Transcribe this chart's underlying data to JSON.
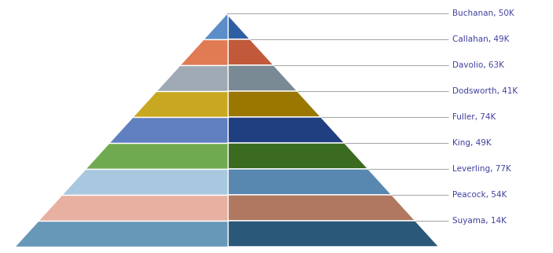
{
  "layers": [
    {
      "name": "Buchanan",
      "value": 50,
      "left_color": "#5B8DC8",
      "right_color": "#2E5FA3"
    },
    {
      "name": "Callahan",
      "value": 49,
      "left_color": "#E07B54",
      "right_color": "#C05A3A"
    },
    {
      "name": "Davolio",
      "value": 63,
      "left_color": "#A0AAB4",
      "right_color": "#7A8A94"
    },
    {
      "name": "Dodsworth",
      "value": 41,
      "left_color": "#C8A820",
      "right_color": "#9A7800"
    },
    {
      "name": "Fuller",
      "value": 74,
      "left_color": "#6080C0",
      "right_color": "#1F3F80"
    },
    {
      "name": "King",
      "value": 49,
      "left_color": "#70AA50",
      "right_color": "#3A6B20"
    },
    {
      "name": "Leverling",
      "value": 77,
      "left_color": "#A8C8E0",
      "right_color": "#5888B0"
    },
    {
      "name": "Peacock",
      "value": 54,
      "left_color": "#E8B0A0",
      "right_color": "#B07860"
    },
    {
      "name": "Suyama",
      "value": 14,
      "left_color": "#6898B8",
      "right_color": "#2A5878"
    }
  ],
  "label_color": "#4040A0",
  "line_color": "#AAAAAA",
  "bg_color": "#FFFFFF",
  "fig_width": 7.03,
  "fig_height": 3.22,
  "dpi": 100
}
